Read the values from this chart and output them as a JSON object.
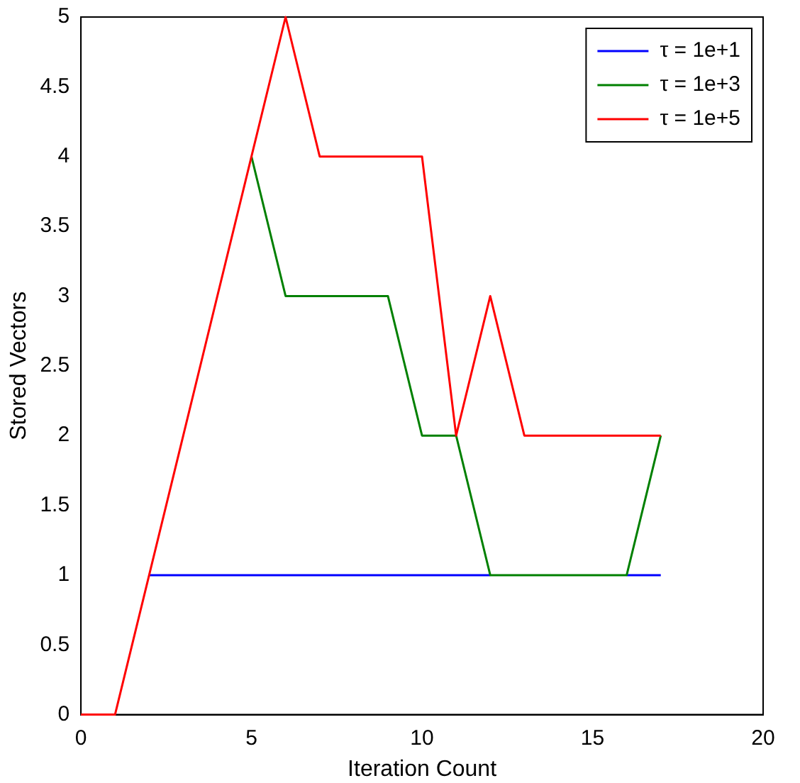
{
  "chart_data": {
    "type": "line",
    "xlabel": "Iteration Count",
    "ylabel": "Stored Vectors",
    "x": [
      0,
      1,
      2,
      3,
      4,
      5,
      6,
      7,
      8,
      9,
      10,
      11,
      12,
      13,
      14,
      15,
      16,
      17
    ],
    "series": [
      {
        "name": "τ = 1e+1",
        "color": "#0000ff",
        "values": [
          null,
          null,
          1,
          1,
          1,
          1,
          1,
          1,
          1,
          1,
          1,
          1,
          1,
          null,
          null,
          null,
          1,
          1
        ]
      },
      {
        "name": "τ = 1e+3",
        "color": "#008000",
        "values": [
          null,
          null,
          null,
          null,
          null,
          4,
          3,
          3,
          3,
          3,
          2,
          2,
          1,
          1,
          1,
          1,
          1,
          2
        ]
      },
      {
        "name": "τ = 1e+5",
        "color": "#ff0000",
        "values": [
          0,
          0,
          1,
          2,
          3,
          4,
          5,
          4,
          4,
          4,
          4,
          2,
          3,
          2,
          2,
          2,
          2,
          2
        ]
      }
    ],
    "xlim": [
      0,
      20
    ],
    "xticks": [
      0,
      5,
      10,
      15,
      20
    ],
    "ylim": [
      0,
      5
    ],
    "yticks": [
      0,
      0.5,
      1,
      1.5,
      2,
      2.5,
      3,
      3.5,
      4,
      4.5,
      5
    ],
    "grid": false,
    "legend": "top right",
    "marker": "none",
    "line_style": "solid"
  }
}
